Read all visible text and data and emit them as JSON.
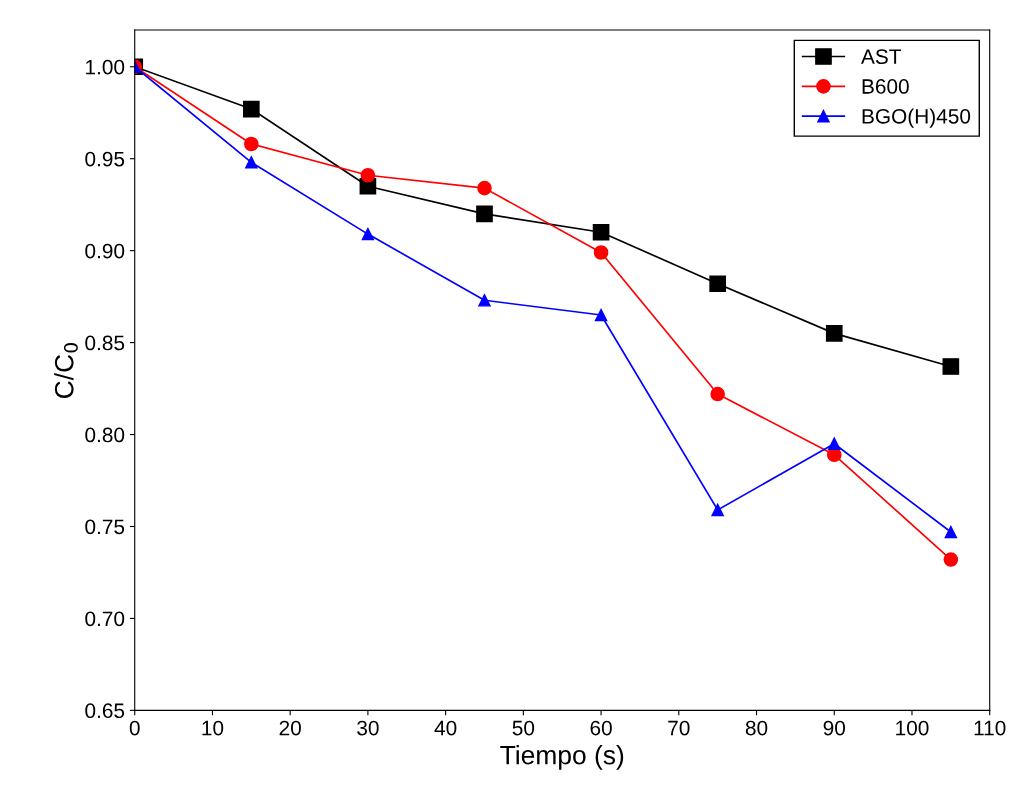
{
  "chart_data": {
    "type": "line",
    "xlabel": "Tiempo (s)",
    "ylabel": "C/C$_{0}$",
    "x": [
      0,
      15,
      30,
      45,
      60,
      75,
      90,
      105
    ],
    "series": [
      {
        "name": "AST",
        "color": "#000000",
        "marker": "square",
        "values": [
          1.0,
          0.977,
          0.935,
          0.92,
          0.91,
          0.882,
          0.855,
          0.837
        ]
      },
      {
        "name": "B600",
        "color": "#ff0000",
        "marker": "circle",
        "values": [
          1.0,
          0.958,
          0.941,
          0.934,
          0.899,
          0.822,
          0.789,
          0.732
        ]
      },
      {
        "name": "BGO(H)450",
        "color": "#0000ff",
        "marker": "triangle",
        "values": [
          1.0,
          0.948,
          0.909,
          0.873,
          0.865,
          0.759,
          0.795,
          0.747
        ]
      }
    ],
    "xlim": [
      0,
      110
    ],
    "xticks": [
      0,
      10,
      20,
      30,
      40,
      50,
      60,
      70,
      80,
      90,
      100,
      110
    ],
    "ylim": [
      0.65,
      1.02
    ],
    "yticks": [
      {
        "value": 0.65,
        "label": "0.65"
      },
      {
        "value": 0.7,
        "label": "0.70"
      },
      {
        "value": 0.75,
        "label": "0.75"
      },
      {
        "value": 0.8,
        "label": "0.80"
      },
      {
        "value": 0.85,
        "label": "0.85"
      },
      {
        "value": 0.9,
        "label": "0.90"
      },
      {
        "value": 0.95,
        "label": "0.95"
      },
      {
        "value": 1.0,
        "label": "1.00"
      }
    ],
    "grid": false,
    "legend": "top right",
    "line_style": "solid"
  }
}
